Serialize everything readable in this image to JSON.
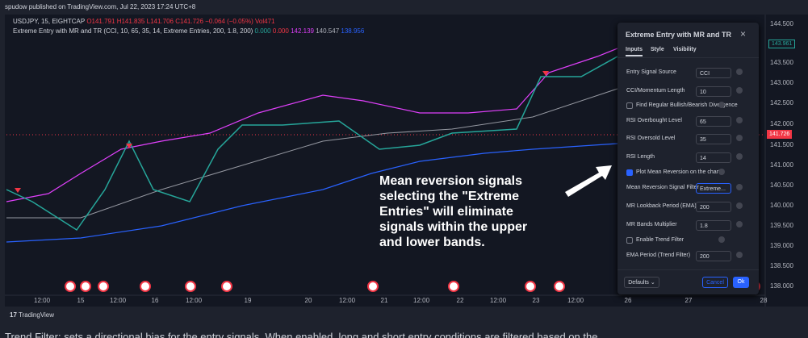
{
  "header": {
    "published": "spudow published on TradingView.com, Jul 22, 2023 17:24 UTC+8"
  },
  "legend": {
    "symbol": "USDJPY, 15, EIGHTCAP",
    "open": "O141.791",
    "high": "H141.835",
    "low": "L141.706",
    "close": "C141.726",
    "change": "−0.064 (−0.05%)",
    "volume": "Vol471",
    "indicator": "Extreme Entry with MR and TR (CCI, 10, 65, 35, 14, Extreme Entries, 200, 1.8, 200)",
    "indicator_values": [
      "0.000",
      "0.000",
      "142.139",
      "140.547",
      "138.956"
    ]
  },
  "price_axis": {
    "labels": [
      "144.500",
      "143.500",
      "143.000",
      "142.500",
      "142.000",
      "141.500",
      "141.000",
      "140.500",
      "140.000",
      "139.500",
      "139.000",
      "138.500",
      "138.000"
    ],
    "current_price": "141.726",
    "last_value": "143.961"
  },
  "time_axis": {
    "labels": [
      "12:00",
      "15",
      "12:00",
      "16",
      "12:00",
      "19",
      "20",
      "12:00",
      "21",
      "12:00",
      "22",
      "12:00",
      "23",
      "12:00",
      "26",
      "27",
      "28"
    ]
  },
  "annotation": {
    "lines": [
      "Mean reversion signals",
      "selecting the \"Extreme",
      "Entries\" will eliminate",
      "signals within the upper",
      "and lower bands."
    ]
  },
  "dialog": {
    "title": "Extreme Entry with MR and TR",
    "tabs": [
      "Inputs",
      "Style",
      "Visibility"
    ],
    "rows": [
      {
        "label": "Entry Signal Source",
        "value": "CCI"
      },
      {
        "label": "CCI/Momentum Length",
        "value": "10"
      },
      {
        "label": "Find Regular Bullish/Bearish Divergence"
      },
      {
        "label": "RSI Overbought Level",
        "value": "65"
      },
      {
        "label": "RSI Oversold Level",
        "value": "35"
      },
      {
        "label": "RSI Length",
        "value": "14"
      },
      {
        "label": "Plot Mean Reversion on the chart"
      },
      {
        "label": "Mean Reversion Signal Filter",
        "value": "Extreme..."
      },
      {
        "label": "MR Lookback Period (EMA)",
        "value": "200"
      },
      {
        "label": "MR Bands Multiplier",
        "value": "1.8"
      },
      {
        "label": "Enable Trend Filter"
      },
      {
        "label": "EMA Period (Trend Filter)",
        "value": "200"
      }
    ],
    "defaults": "Defaults",
    "cancel": "Cancel",
    "ok": "Ok"
  },
  "footer": {
    "brand": "TradingView",
    "caption": "Trend Filter: sets a directional bias for the entry signals. When enabled, long and short entry conditions are filtered based on the"
  }
}
